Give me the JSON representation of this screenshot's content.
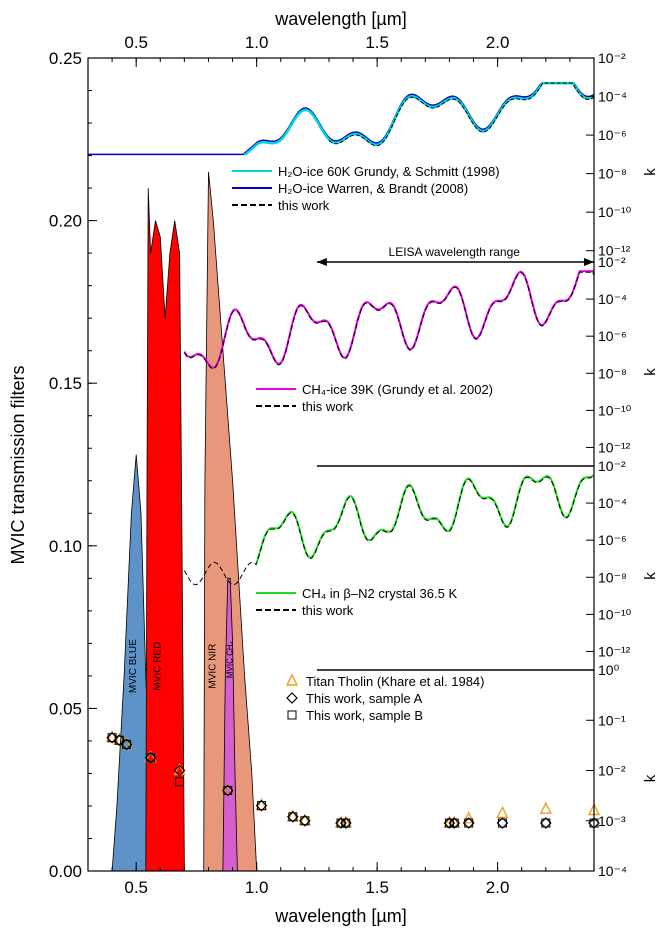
{
  "chart_data": {
    "type": "area",
    "x_axis": {
      "label": "wavelength [µm]",
      "range": [
        0.3,
        2.4
      ],
      "ticks": [
        0.5,
        1.0,
        1.5,
        2.0
      ],
      "tick_labels": [
        "0.5",
        "1.0",
        "1.5",
        "2.0"
      ]
    },
    "top_axis": {
      "label": "wavelength [µm]",
      "tick_labels": [
        "0.5",
        "1.0",
        "1.5",
        "2.0"
      ]
    },
    "y_axis": {
      "label": "MVIC transmission filters",
      "range": [
        0,
        0.25
      ],
      "tick_labels": [
        "0.00",
        "0.05",
        "0.10",
        "0.15",
        "0.20",
        "0.25"
      ]
    },
    "filters": [
      {
        "name": "MVIC BLUE",
        "color": "#5e93c9",
        "points": [
          [
            0.4,
            0.0
          ],
          [
            0.42,
            0.02
          ],
          [
            0.45,
            0.06
          ],
          [
            0.48,
            0.11
          ],
          [
            0.5,
            0.128
          ],
          [
            0.52,
            0.11
          ],
          [
            0.54,
            0.06
          ],
          [
            0.56,
            0.02
          ],
          [
            0.58,
            0.0
          ]
        ]
      },
      {
        "name": "MVIC RED",
        "color": "#ff0000",
        "points": [
          [
            0.54,
            0.0
          ],
          [
            0.545,
            0.12
          ],
          [
            0.55,
            0.21
          ],
          [
            0.56,
            0.19
          ],
          [
            0.58,
            0.2
          ],
          [
            0.6,
            0.195
          ],
          [
            0.62,
            0.17
          ],
          [
            0.64,
            0.19
          ],
          [
            0.66,
            0.2
          ],
          [
            0.68,
            0.19
          ],
          [
            0.69,
            0.1
          ],
          [
            0.7,
            0.0
          ]
        ]
      },
      {
        "name": "MVIC NIR",
        "color": "#e9977b",
        "points": [
          [
            0.78,
            0.0
          ],
          [
            0.785,
            0.12
          ],
          [
            0.8,
            0.215
          ],
          [
            0.82,
            0.2
          ],
          [
            0.85,
            0.17
          ],
          [
            0.9,
            0.12
          ],
          [
            0.95,
            0.06
          ],
          [
            0.98,
            0.03
          ],
          [
            1.0,
            0.0
          ]
        ]
      },
      {
        "name": "MVIC CH4",
        "color": "#d55fcf",
        "points": [
          [
            0.86,
            0.0
          ],
          [
            0.87,
            0.06
          ],
          [
            0.88,
            0.09
          ],
          [
            0.89,
            0.09
          ],
          [
            0.9,
            0.07
          ],
          [
            0.91,
            0.03
          ],
          [
            0.92,
            0.0
          ]
        ]
      }
    ],
    "panels": [
      {
        "ylabel": "k",
        "scale": "log",
        "tick_labels": [
          "10⁻¹²",
          "10⁻¹⁰",
          "10⁻⁸",
          "10⁻⁶",
          "10⁻⁴",
          "10⁻²"
        ],
        "legend": [
          "H₂O-ice 60K  Grundy, & Schmitt (1998)",
          "H₂O-ice  Warren, & Brandt (2008)",
          "this work"
        ],
        "series_colors": [
          "#00d8d8",
          "#0000c8",
          "#000000"
        ]
      },
      {
        "ylabel": "k",
        "scale": "log",
        "tick_labels": [
          "10⁻¹²",
          "10⁻¹⁰",
          "10⁻⁸",
          "10⁻⁶",
          "10⁻⁴",
          "10⁻²"
        ],
        "legend": [
          "CH₄-ice 39K  (Grundy et al. 2002)",
          "this work"
        ],
        "series_colors": [
          "#e000e0",
          "#000000"
        ]
      },
      {
        "ylabel": "k",
        "scale": "log",
        "tick_labels": [
          "10⁻¹²",
          "10⁻¹⁰",
          "10⁻⁸",
          "10⁻⁶",
          "10⁻⁴",
          "10⁻²"
        ],
        "legend": [
          "CH₄ in β–N2 crystal 36.5 K",
          "this work"
        ],
        "series_colors": [
          "#22dd22",
          "#000000"
        ]
      },
      {
        "ylabel": "k",
        "scale": "log",
        "tick_labels": [
          "10⁻⁴",
          "10⁻³",
          "10⁻²",
          "10⁻¹",
          "10⁰"
        ],
        "legend": [
          "Titan Tholin  (Khare et al. 1984)",
          "This work, sample A",
          "This work, sample B"
        ],
        "series_colors": [
          "#f0a020",
          "#000000",
          "#000000"
        ]
      }
    ],
    "annotation": "LEISA wavelength range",
    "leisa_range": [
      1.25,
      2.4
    ],
    "tholin_khare": [
      [
        0.4,
        0.045
      ],
      [
        0.43,
        0.04
      ],
      [
        0.46,
        0.033
      ],
      [
        0.56,
        0.018
      ],
      [
        0.68,
        0.01
      ],
      [
        0.88,
        0.004
      ],
      [
        1.02,
        0.002
      ],
      [
        1.15,
        0.0012
      ],
      [
        1.2,
        0.001
      ],
      [
        1.35,
        0.0009
      ],
      [
        1.37,
        0.0009
      ],
      [
        1.8,
        0.0009
      ],
      [
        1.82,
        0.0009
      ],
      [
        1.88,
        0.0011
      ],
      [
        2.02,
        0.0014
      ],
      [
        2.2,
        0.0017
      ],
      [
        2.4,
        0.0016
      ]
    ],
    "sample_a": [
      [
        0.4,
        0.045
      ],
      [
        0.43,
        0.04
      ],
      [
        0.46,
        0.033
      ],
      [
        0.56,
        0.018
      ],
      [
        0.68,
        0.01
      ],
      [
        0.88,
        0.004
      ],
      [
        1.02,
        0.002
      ],
      [
        1.15,
        0.0012
      ],
      [
        1.2,
        0.001
      ],
      [
        1.35,
        0.0009
      ],
      [
        1.37,
        0.0009
      ],
      [
        1.8,
        0.0009
      ],
      [
        1.82,
        0.0009
      ],
      [
        1.88,
        0.0009
      ],
      [
        2.02,
        0.0009
      ],
      [
        2.2,
        0.0009
      ],
      [
        2.4,
        0.0009
      ]
    ],
    "sample_b": [
      [
        0.4,
        0.045
      ],
      [
        0.43,
        0.04
      ],
      [
        0.46,
        0.033
      ],
      [
        0.56,
        0.018
      ],
      [
        0.68,
        0.006
      ],
      [
        0.88,
        0.004
      ],
      [
        1.02,
        0.002
      ],
      [
        1.15,
        0.0012
      ],
      [
        1.2,
        0.001
      ],
      [
        1.35,
        0.0009
      ],
      [
        1.37,
        0.0009
      ],
      [
        1.8,
        0.0009
      ],
      [
        1.82,
        0.0009
      ],
      [
        1.88,
        0.0009
      ],
      [
        2.02,
        0.0009
      ],
      [
        2.2,
        0.0009
      ],
      [
        2.4,
        0.0009
      ]
    ],
    "filter_labels": [
      "MVIC BLUE",
      "MVIC RED",
      "MVIC NIR",
      "MVIC CH₄"
    ]
  }
}
